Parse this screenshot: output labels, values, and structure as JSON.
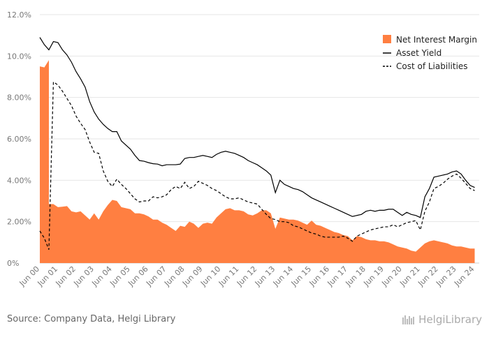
{
  "chart_data": {
    "type": "area",
    "ylim": [
      0,
      12
    ],
    "y_ticks": [
      "0%",
      "2.00%",
      "4.00%",
      "6.00%",
      "8.00%",
      "10.0%",
      "12.0%"
    ],
    "x_ticks": [
      "Jun 00",
      "Jun 01",
      "Jun 02",
      "Jun 03",
      "Jun 04",
      "Jun 05",
      "Jun 06",
      "Jun 07",
      "Jun 08",
      "Jun 09",
      "Jun 10",
      "Jun 11",
      "Jun 12",
      "Jun 13",
      "Jun 14",
      "Jun 15",
      "Jun 16",
      "Jun 17",
      "Jun 18",
      "Jun 19",
      "Jun 20",
      "Jun 21",
      "Jun 22",
      "Jun 23",
      "Jun 24"
    ],
    "x_start_year": 2000.5,
    "x_end_year": 2024.75,
    "grid": true,
    "legend_position": "top-right",
    "series": [
      {
        "name": "Net Interest Margin",
        "style": "area",
        "color": "#ff7f41",
        "points": [
          [
            2000.5,
            9.5
          ],
          [
            2000.75,
            9.45
          ],
          [
            2001.0,
            9.8
          ],
          [
            2001.0,
            2.85
          ],
          [
            2001.25,
            2.85
          ],
          [
            2001.5,
            2.7
          ],
          [
            2001.75,
            2.72
          ],
          [
            2002.0,
            2.75
          ],
          [
            2002.25,
            2.5
          ],
          [
            2002.5,
            2.45
          ],
          [
            2002.75,
            2.5
          ],
          [
            2003.0,
            2.3
          ],
          [
            2003.25,
            2.1
          ],
          [
            2003.5,
            2.4
          ],
          [
            2003.75,
            2.1
          ],
          [
            2004.0,
            2.5
          ],
          [
            2004.25,
            2.8
          ],
          [
            2004.5,
            3.05
          ],
          [
            2004.75,
            3.0
          ],
          [
            2005.0,
            2.7
          ],
          [
            2005.25,
            2.65
          ],
          [
            2005.5,
            2.6
          ],
          [
            2005.75,
            2.4
          ],
          [
            2006.0,
            2.4
          ],
          [
            2006.25,
            2.35
          ],
          [
            2006.5,
            2.25
          ],
          [
            2006.75,
            2.1
          ],
          [
            2007.0,
            2.1
          ],
          [
            2007.25,
            1.95
          ],
          [
            2007.5,
            1.85
          ],
          [
            2007.75,
            1.7
          ],
          [
            2008.0,
            1.55
          ],
          [
            2008.25,
            1.8
          ],
          [
            2008.5,
            1.75
          ],
          [
            2008.75,
            2.0
          ],
          [
            2009.0,
            1.9
          ],
          [
            2009.25,
            1.7
          ],
          [
            2009.5,
            1.9
          ],
          [
            2009.75,
            1.95
          ],
          [
            2010.0,
            1.9
          ],
          [
            2010.25,
            2.2
          ],
          [
            2010.5,
            2.4
          ],
          [
            2010.75,
            2.6
          ],
          [
            2011.0,
            2.65
          ],
          [
            2011.25,
            2.55
          ],
          [
            2011.5,
            2.55
          ],
          [
            2011.75,
            2.5
          ],
          [
            2012.0,
            2.35
          ],
          [
            2012.25,
            2.3
          ],
          [
            2012.5,
            2.4
          ],
          [
            2012.75,
            2.55
          ],
          [
            2013.0,
            2.55
          ],
          [
            2013.25,
            2.4
          ],
          [
            2013.5,
            1.65
          ],
          [
            2013.75,
            2.2
          ],
          [
            2014.0,
            2.15
          ],
          [
            2014.25,
            2.1
          ],
          [
            2014.5,
            2.1
          ],
          [
            2014.75,
            2.05
          ],
          [
            2015.0,
            1.95
          ],
          [
            2015.25,
            1.85
          ],
          [
            2015.5,
            2.05
          ],
          [
            2015.75,
            1.85
          ],
          [
            2016.0,
            1.8
          ],
          [
            2016.25,
            1.7
          ],
          [
            2016.5,
            1.6
          ],
          [
            2016.75,
            1.5
          ],
          [
            2017.0,
            1.45
          ],
          [
            2017.25,
            1.35
          ],
          [
            2017.5,
            1.3
          ],
          [
            2017.75,
            1.1
          ],
          [
            2018.0,
            1.3
          ],
          [
            2018.25,
            1.25
          ],
          [
            2018.5,
            1.15
          ],
          [
            2018.75,
            1.1
          ],
          [
            2019.0,
            1.1
          ],
          [
            2019.25,
            1.05
          ],
          [
            2019.5,
            1.05
          ],
          [
            2019.75,
            1.0
          ],
          [
            2020.0,
            0.9
          ],
          [
            2020.25,
            0.8
          ],
          [
            2020.5,
            0.75
          ],
          [
            2020.75,
            0.7
          ],
          [
            2021.0,
            0.6
          ],
          [
            2021.25,
            0.55
          ],
          [
            2021.5,
            0.75
          ],
          [
            2021.75,
            0.95
          ],
          [
            2022.0,
            1.05
          ],
          [
            2022.25,
            1.1
          ],
          [
            2022.5,
            1.05
          ],
          [
            2022.75,
            1.0
          ],
          [
            2023.0,
            0.95
          ],
          [
            2023.25,
            0.85
          ],
          [
            2023.5,
            0.8
          ],
          [
            2023.75,
            0.8
          ],
          [
            2024.0,
            0.75
          ],
          [
            2024.25,
            0.7
          ],
          [
            2024.5,
            0.7
          ]
        ]
      },
      {
        "name": "Asset Yield",
        "style": "line-solid",
        "color": "#000000",
        "points": [
          [
            2000.5,
            10.9
          ],
          [
            2000.75,
            10.55
          ],
          [
            2001.0,
            10.3
          ],
          [
            2001.25,
            10.7
          ],
          [
            2001.5,
            10.65
          ],
          [
            2001.75,
            10.3
          ],
          [
            2002.0,
            10.05
          ],
          [
            2002.25,
            9.7
          ],
          [
            2002.5,
            9.25
          ],
          [
            2002.75,
            8.9
          ],
          [
            2003.0,
            8.5
          ],
          [
            2003.25,
            7.8
          ],
          [
            2003.5,
            7.3
          ],
          [
            2003.75,
            6.95
          ],
          [
            2004.0,
            6.7
          ],
          [
            2004.25,
            6.5
          ],
          [
            2004.5,
            6.35
          ],
          [
            2004.75,
            6.35
          ],
          [
            2005.0,
            5.9
          ],
          [
            2005.25,
            5.7
          ],
          [
            2005.5,
            5.5
          ],
          [
            2005.75,
            5.2
          ],
          [
            2006.0,
            4.95
          ],
          [
            2006.25,
            4.92
          ],
          [
            2006.5,
            4.85
          ],
          [
            2006.75,
            4.8
          ],
          [
            2007.0,
            4.78
          ],
          [
            2007.25,
            4.7
          ],
          [
            2007.5,
            4.75
          ],
          [
            2007.75,
            4.75
          ],
          [
            2008.0,
            4.75
          ],
          [
            2008.25,
            4.78
          ],
          [
            2008.5,
            5.05
          ],
          [
            2008.75,
            5.1
          ],
          [
            2009.0,
            5.1
          ],
          [
            2009.25,
            5.15
          ],
          [
            2009.5,
            5.2
          ],
          [
            2009.75,
            5.15
          ],
          [
            2010.0,
            5.1
          ],
          [
            2010.25,
            5.25
          ],
          [
            2010.5,
            5.35
          ],
          [
            2010.75,
            5.4
          ],
          [
            2011.0,
            5.35
          ],
          [
            2011.25,
            5.3
          ],
          [
            2011.5,
            5.2
          ],
          [
            2011.75,
            5.1
          ],
          [
            2012.0,
            4.95
          ],
          [
            2012.25,
            4.85
          ],
          [
            2012.5,
            4.75
          ],
          [
            2012.75,
            4.6
          ],
          [
            2013.0,
            4.45
          ],
          [
            2013.25,
            4.25
          ],
          [
            2013.5,
            3.4
          ],
          [
            2013.75,
            4.0
          ],
          [
            2014.0,
            3.8
          ],
          [
            2014.25,
            3.7
          ],
          [
            2014.5,
            3.6
          ],
          [
            2014.75,
            3.55
          ],
          [
            2015.0,
            3.45
          ],
          [
            2015.25,
            3.3
          ],
          [
            2015.5,
            3.15
          ],
          [
            2015.75,
            3.05
          ],
          [
            2016.0,
            2.95
          ],
          [
            2016.25,
            2.85
          ],
          [
            2016.5,
            2.75
          ],
          [
            2016.75,
            2.65
          ],
          [
            2017.0,
            2.55
          ],
          [
            2017.25,
            2.45
          ],
          [
            2017.5,
            2.35
          ],
          [
            2017.75,
            2.25
          ],
          [
            2018.0,
            2.3
          ],
          [
            2018.25,
            2.35
          ],
          [
            2018.5,
            2.5
          ],
          [
            2018.75,
            2.55
          ],
          [
            2019.0,
            2.5
          ],
          [
            2019.25,
            2.55
          ],
          [
            2019.5,
            2.55
          ],
          [
            2019.75,
            2.6
          ],
          [
            2020.0,
            2.6
          ],
          [
            2020.25,
            2.45
          ],
          [
            2020.5,
            2.3
          ],
          [
            2020.75,
            2.45
          ],
          [
            2021.0,
            2.35
          ],
          [
            2021.25,
            2.3
          ],
          [
            2021.5,
            2.2
          ],
          [
            2021.75,
            3.2
          ],
          [
            2022.0,
            3.6
          ],
          [
            2022.25,
            4.15
          ],
          [
            2022.5,
            4.2
          ],
          [
            2022.75,
            4.25
          ],
          [
            2023.0,
            4.3
          ],
          [
            2023.25,
            4.4
          ],
          [
            2023.5,
            4.45
          ],
          [
            2023.75,
            4.3
          ],
          [
            2024.0,
            4.0
          ],
          [
            2024.25,
            3.75
          ],
          [
            2024.5,
            3.65
          ]
        ]
      },
      {
        "name": "Cost of Liabilities",
        "style": "line-dashed",
        "color": "#000000",
        "points": [
          [
            2000.5,
            1.55
          ],
          [
            2000.75,
            1.2
          ],
          [
            2001.0,
            0.65
          ],
          [
            2001.25,
            8.75
          ],
          [
            2001.5,
            8.6
          ],
          [
            2001.75,
            8.3
          ],
          [
            2002.0,
            7.95
          ],
          [
            2002.25,
            7.6
          ],
          [
            2002.5,
            7.1
          ],
          [
            2002.75,
            6.75
          ],
          [
            2003.0,
            6.45
          ],
          [
            2003.25,
            5.85
          ],
          [
            2003.5,
            5.35
          ],
          [
            2003.75,
            5.3
          ],
          [
            2004.0,
            4.45
          ],
          [
            2004.25,
            3.95
          ],
          [
            2004.5,
            3.7
          ],
          [
            2004.75,
            4.05
          ],
          [
            2005.0,
            3.8
          ],
          [
            2005.25,
            3.6
          ],
          [
            2005.5,
            3.35
          ],
          [
            2005.75,
            3.1
          ],
          [
            2006.0,
            2.95
          ],
          [
            2006.25,
            3.0
          ],
          [
            2006.5,
            3.0
          ],
          [
            2006.75,
            3.2
          ],
          [
            2007.0,
            3.15
          ],
          [
            2007.25,
            3.2
          ],
          [
            2007.5,
            3.3
          ],
          [
            2007.75,
            3.55
          ],
          [
            2008.0,
            3.7
          ],
          [
            2008.25,
            3.6
          ],
          [
            2008.5,
            3.9
          ],
          [
            2008.75,
            3.6
          ],
          [
            2009.0,
            3.7
          ],
          [
            2009.25,
            3.95
          ],
          [
            2009.5,
            3.85
          ],
          [
            2009.75,
            3.75
          ],
          [
            2010.0,
            3.6
          ],
          [
            2010.25,
            3.5
          ],
          [
            2010.5,
            3.35
          ],
          [
            2010.75,
            3.2
          ],
          [
            2011.0,
            3.1
          ],
          [
            2011.25,
            3.1
          ],
          [
            2011.5,
            3.15
          ],
          [
            2011.75,
            3.05
          ],
          [
            2012.0,
            2.95
          ],
          [
            2012.25,
            2.9
          ],
          [
            2012.5,
            2.85
          ],
          [
            2012.75,
            2.6
          ],
          [
            2013.0,
            2.35
          ],
          [
            2013.25,
            2.15
          ],
          [
            2013.5,
            2.1
          ],
          [
            2013.75,
            2.0
          ],
          [
            2014.0,
            2.0
          ],
          [
            2014.25,
            1.95
          ],
          [
            2014.5,
            1.8
          ],
          [
            2014.75,
            1.75
          ],
          [
            2015.0,
            1.65
          ],
          [
            2015.25,
            1.55
          ],
          [
            2015.5,
            1.45
          ],
          [
            2015.75,
            1.4
          ],
          [
            2016.0,
            1.3
          ],
          [
            2016.25,
            1.25
          ],
          [
            2016.5,
            1.25
          ],
          [
            2016.75,
            1.25
          ],
          [
            2017.0,
            1.25
          ],
          [
            2017.25,
            1.3
          ],
          [
            2017.5,
            1.2
          ],
          [
            2017.75,
            1.05
          ],
          [
            2018.0,
            1.3
          ],
          [
            2018.25,
            1.4
          ],
          [
            2018.5,
            1.5
          ],
          [
            2018.75,
            1.6
          ],
          [
            2019.0,
            1.65
          ],
          [
            2019.25,
            1.7
          ],
          [
            2019.5,
            1.75
          ],
          [
            2019.75,
            1.75
          ],
          [
            2020.0,
            1.85
          ],
          [
            2020.25,
            1.75
          ],
          [
            2020.5,
            1.85
          ],
          [
            2020.75,
            1.95
          ],
          [
            2021.0,
            2.0
          ],
          [
            2021.25,
            2.05
          ],
          [
            2021.5,
            1.6
          ],
          [
            2021.75,
            2.5
          ],
          [
            2022.0,
            2.95
          ],
          [
            2022.25,
            3.6
          ],
          [
            2022.5,
            3.7
          ],
          [
            2022.75,
            3.85
          ],
          [
            2023.0,
            4.05
          ],
          [
            2023.25,
            4.2
          ],
          [
            2023.5,
            4.3
          ],
          [
            2023.75,
            4.1
          ],
          [
            2024.0,
            3.85
          ],
          [
            2024.25,
            3.6
          ],
          [
            2024.5,
            3.5
          ]
        ]
      }
    ]
  },
  "footer": {
    "source": "Source: Company Data, Helgi Library",
    "brand": "HelgiLibrary"
  }
}
